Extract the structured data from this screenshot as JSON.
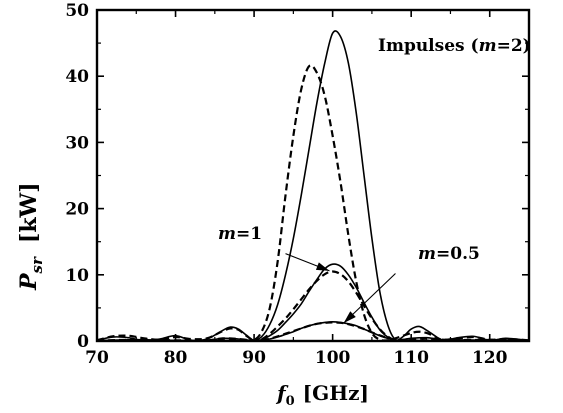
{
  "chart_data": {
    "type": "line",
    "xlabel": {
      "symbol": "f",
      "subscript": "0",
      "unit": "[GHz]"
    },
    "ylabel": {
      "symbol": "P",
      "subscript": "sr",
      "unit": "[kW]"
    },
    "xlim": [
      70,
      125
    ],
    "ylim": [
      0,
      50
    ],
    "xticks": [
      70,
      80,
      90,
      100,
      110,
      120
    ],
    "yticks": [
      0,
      10,
      20,
      30,
      40,
      50
    ],
    "grid": false,
    "annotations": [
      {
        "id": "impulses",
        "prefix": "Impulses (",
        "var": "m",
        "suffix": "=2)"
      },
      {
        "id": "m1",
        "var": "m",
        "suffix": "=1"
      },
      {
        "id": "m05",
        "var": "m",
        "suffix": "=0.5"
      }
    ],
    "series": [
      {
        "style": "solid",
        "x": [
          70,
          72,
          74,
          76,
          78,
          80,
          82,
          84,
          86,
          87,
          88,
          89,
          90,
          91,
          92,
          93,
          94,
          95,
          96,
          97,
          98,
          99,
          100,
          101,
          102,
          103,
          104,
          105,
          106,
          107,
          108,
          109,
          110,
          111,
          112,
          113,
          114,
          116,
          118,
          120,
          122,
          124,
          125
        ],
        "y": [
          0.1,
          0.6,
          0.5,
          0.05,
          0.3,
          0.8,
          0.1,
          0.3,
          1.6,
          2.1,
          1.8,
          0.9,
          0.1,
          0.7,
          2.5,
          5.5,
          10,
          15.5,
          22,
          29,
          36,
          42,
          46.5,
          46,
          42,
          34.5,
          25,
          15.5,
          7.5,
          2.5,
          0.2,
          0.7,
          1.8,
          2.2,
          1.6,
          0.8,
          0.1,
          0.5,
          0.7,
          0.1,
          0.4,
          0.2,
          0.1
        ]
      },
      {
        "style": "dashed",
        "x": [
          70,
          72,
          74,
          76,
          78,
          80,
          82,
          84,
          86,
          87,
          88,
          89,
          90,
          91,
          92,
          93,
          94,
          95,
          96,
          97,
          98,
          99,
          100,
          101,
          102,
          103,
          104,
          105,
          106,
          107,
          108,
          110,
          111,
          112,
          113,
          114,
          116,
          118,
          120,
          122,
          124,
          125
        ],
        "y": [
          0.1,
          0.7,
          0.8,
          0.4,
          0.2,
          0.6,
          0.3,
          0.4,
          1.5,
          1.9,
          1.7,
          0.8,
          0.2,
          1.5,
          5,
          12,
          22,
          31,
          38,
          41.5,
          40.5,
          37,
          31,
          24,
          16,
          9,
          4,
          1.2,
          0.2,
          0.1,
          0.4,
          1.2,
          1.4,
          1.2,
          0.7,
          0.2,
          0.4,
          0.6,
          0.2,
          0.3,
          0.2,
          0.1
        ]
      },
      {
        "style": "solid",
        "x": [
          70,
          75,
          80,
          84,
          86,
          88,
          90,
          91,
          92,
          93,
          94,
          95,
          96,
          97,
          98,
          99,
          100,
          101,
          102,
          103,
          104,
          105,
          106,
          107,
          108,
          110,
          112,
          114,
          118,
          122,
          125
        ],
        "y": [
          0.05,
          0.2,
          0.1,
          0.1,
          0.4,
          0.3,
          0.05,
          0.2,
          0.8,
          1.6,
          2.8,
          4.1,
          5.6,
          7.5,
          9.3,
          10.9,
          11.6,
          11.3,
          10,
          8.1,
          5.8,
          3.6,
          1.7,
          0.6,
          0.1,
          0.4,
          0.5,
          0.2,
          0.15,
          0.15,
          0.05
        ]
      },
      {
        "style": "dashed",
        "x": [
          70,
          75,
          80,
          84,
          86,
          88,
          90,
          91,
          92,
          93,
          94,
          95,
          96,
          97,
          98,
          99,
          100,
          101,
          102,
          103,
          104,
          105,
          106,
          107,
          108,
          110,
          112,
          114,
          118,
          122,
          125
        ],
        "y": [
          0.05,
          0.2,
          0.1,
          0.1,
          0.4,
          0.3,
          0.1,
          0.3,
          1.1,
          2.2,
          3.4,
          4.8,
          6.3,
          7.8,
          9.1,
          10.1,
          10.5,
          10.1,
          9,
          7.3,
          5.3,
          3.4,
          1.8,
          0.7,
          0.15,
          0.3,
          0.4,
          0.2,
          0.15,
          0.15,
          0.05
        ]
      },
      {
        "style": "solid",
        "x": [
          70,
          75,
          80,
          85,
          88,
          90,
          91,
          92,
          93,
          94,
          95,
          96,
          97,
          98,
          99,
          100,
          101,
          102,
          103,
          104,
          105,
          106,
          107,
          108,
          110,
          115,
          120,
          125
        ],
        "y": [
          0.02,
          0.05,
          0.03,
          0.05,
          0.06,
          0.05,
          0.1,
          0.3,
          0.6,
          1.0,
          1.4,
          1.9,
          2.3,
          2.6,
          2.8,
          2.9,
          2.8,
          2.6,
          2.3,
          1.8,
          1.3,
          0.8,
          0.4,
          0.15,
          0.08,
          0.05,
          0.04,
          0.02
        ]
      },
      {
        "style": "dashed",
        "x": [
          70,
          75,
          80,
          85,
          88,
          90,
          91,
          92,
          93,
          94,
          95,
          96,
          97,
          98,
          99,
          100,
          101,
          102,
          103,
          104,
          105,
          106,
          107,
          108,
          110,
          115,
          120,
          125
        ],
        "y": [
          0.02,
          0.05,
          0.03,
          0.05,
          0.06,
          0.05,
          0.12,
          0.35,
          0.7,
          1.1,
          1.5,
          1.9,
          2.3,
          2.6,
          2.75,
          2.8,
          2.75,
          2.55,
          2.2,
          1.8,
          1.3,
          0.85,
          0.45,
          0.2,
          0.08,
          0.05,
          0.04,
          0.02
        ]
      }
    ],
    "arrows": [
      {
        "from": [
          94,
          13.2
        ],
        "to": [
          99.6,
          10.6
        ]
      },
      {
        "from": [
          108,
          10.2
        ],
        "to": [
          101.4,
          2.7
        ]
      }
    ]
  }
}
